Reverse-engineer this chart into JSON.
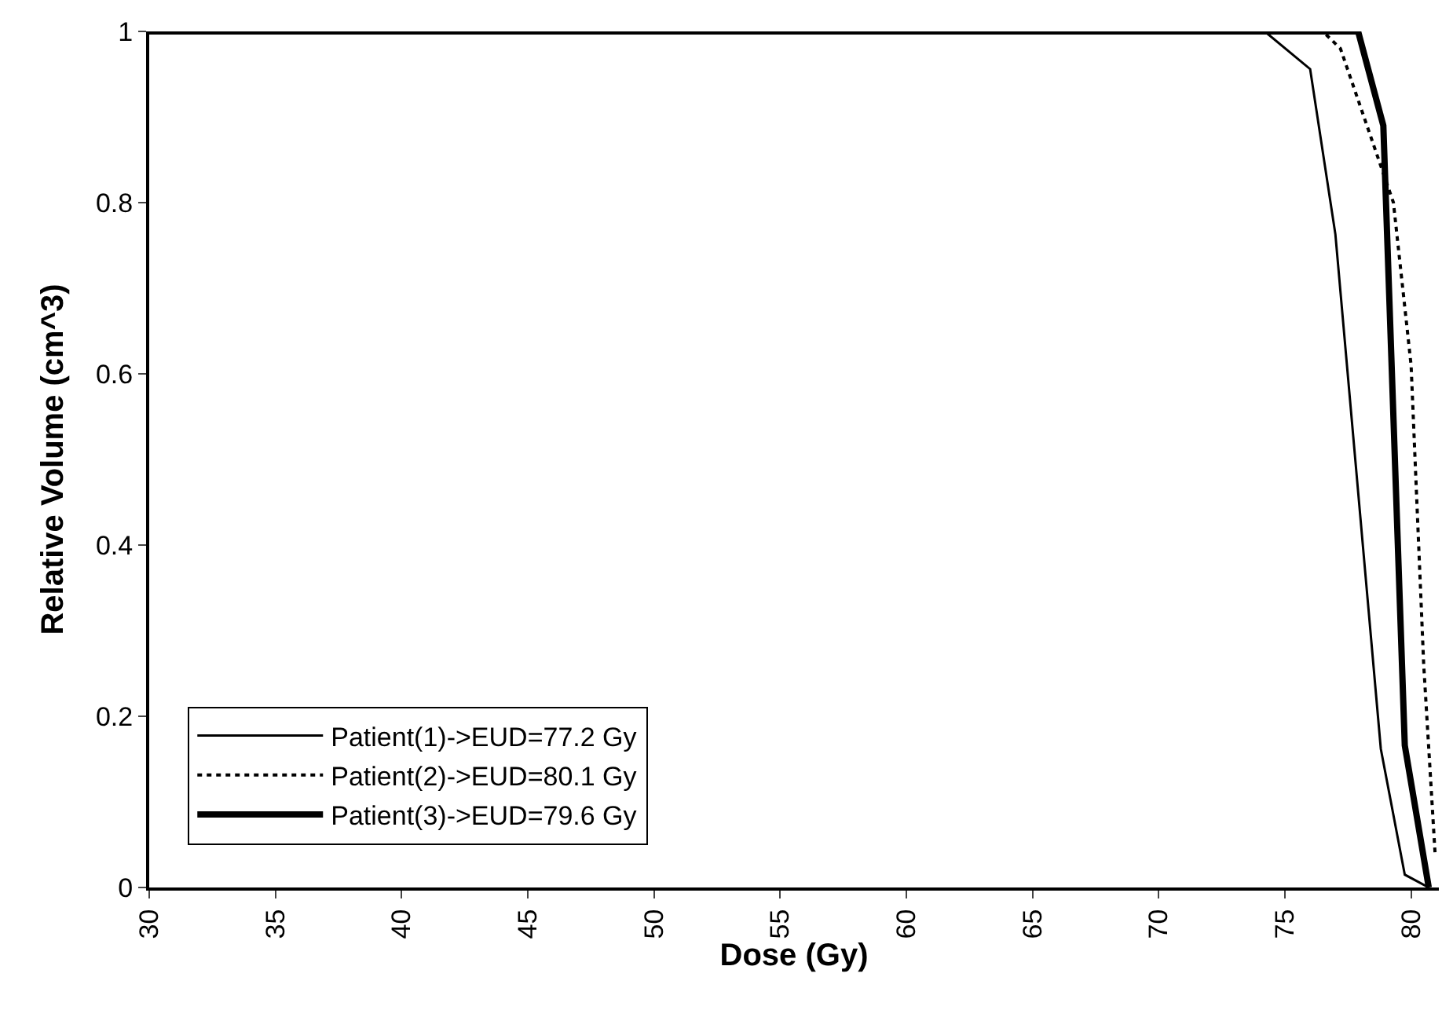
{
  "chart_data": {
    "type": "line",
    "xlabel": "Dose (Gy)",
    "ylabel": "Relative Volume (cm^3)",
    "xlim": [
      30,
      81.1
    ],
    "xticks": [
      30,
      35,
      40,
      45,
      50,
      55,
      60,
      65,
      70,
      75,
      80
    ],
    "ylim": [
      0,
      1
    ],
    "yticks": [
      0,
      0.2,
      0.4,
      0.6,
      0.8,
      1
    ],
    "legend": "bottom left",
    "marker": "none",
    "series": [
      {
        "name": "Patient(1)->EUD=77.2 Gy",
        "color": "#000000",
        "line_style": "solid",
        "x": [
          30,
          74.2,
          76.0,
          77.0,
          78.8,
          79.75,
          80.7
        ],
        "values": [
          1,
          1,
          0.956,
          0.763,
          0.162,
          0.015,
          0
        ]
      },
      {
        "name": "Patient(2)->EUD=80.1 Gy",
        "color": "#000000",
        "line_style": "dotted",
        "x": [
          30,
          76.5,
          77.2,
          79.3,
          80.0,
          80.5,
          80.95
        ],
        "values": [
          1,
          1,
          0.98,
          0.8,
          0.61,
          0.26,
          0.04
        ]
      },
      {
        "name": "Patient(3)->EUD=79.6 Gy",
        "color": "#000000",
        "line_style": "solid",
        "x": [
          30,
          77.9,
          78.9,
          79.75,
          80.7
        ],
        "values": [
          1,
          1,
          0.89,
          0.166,
          0
        ]
      }
    ]
  }
}
